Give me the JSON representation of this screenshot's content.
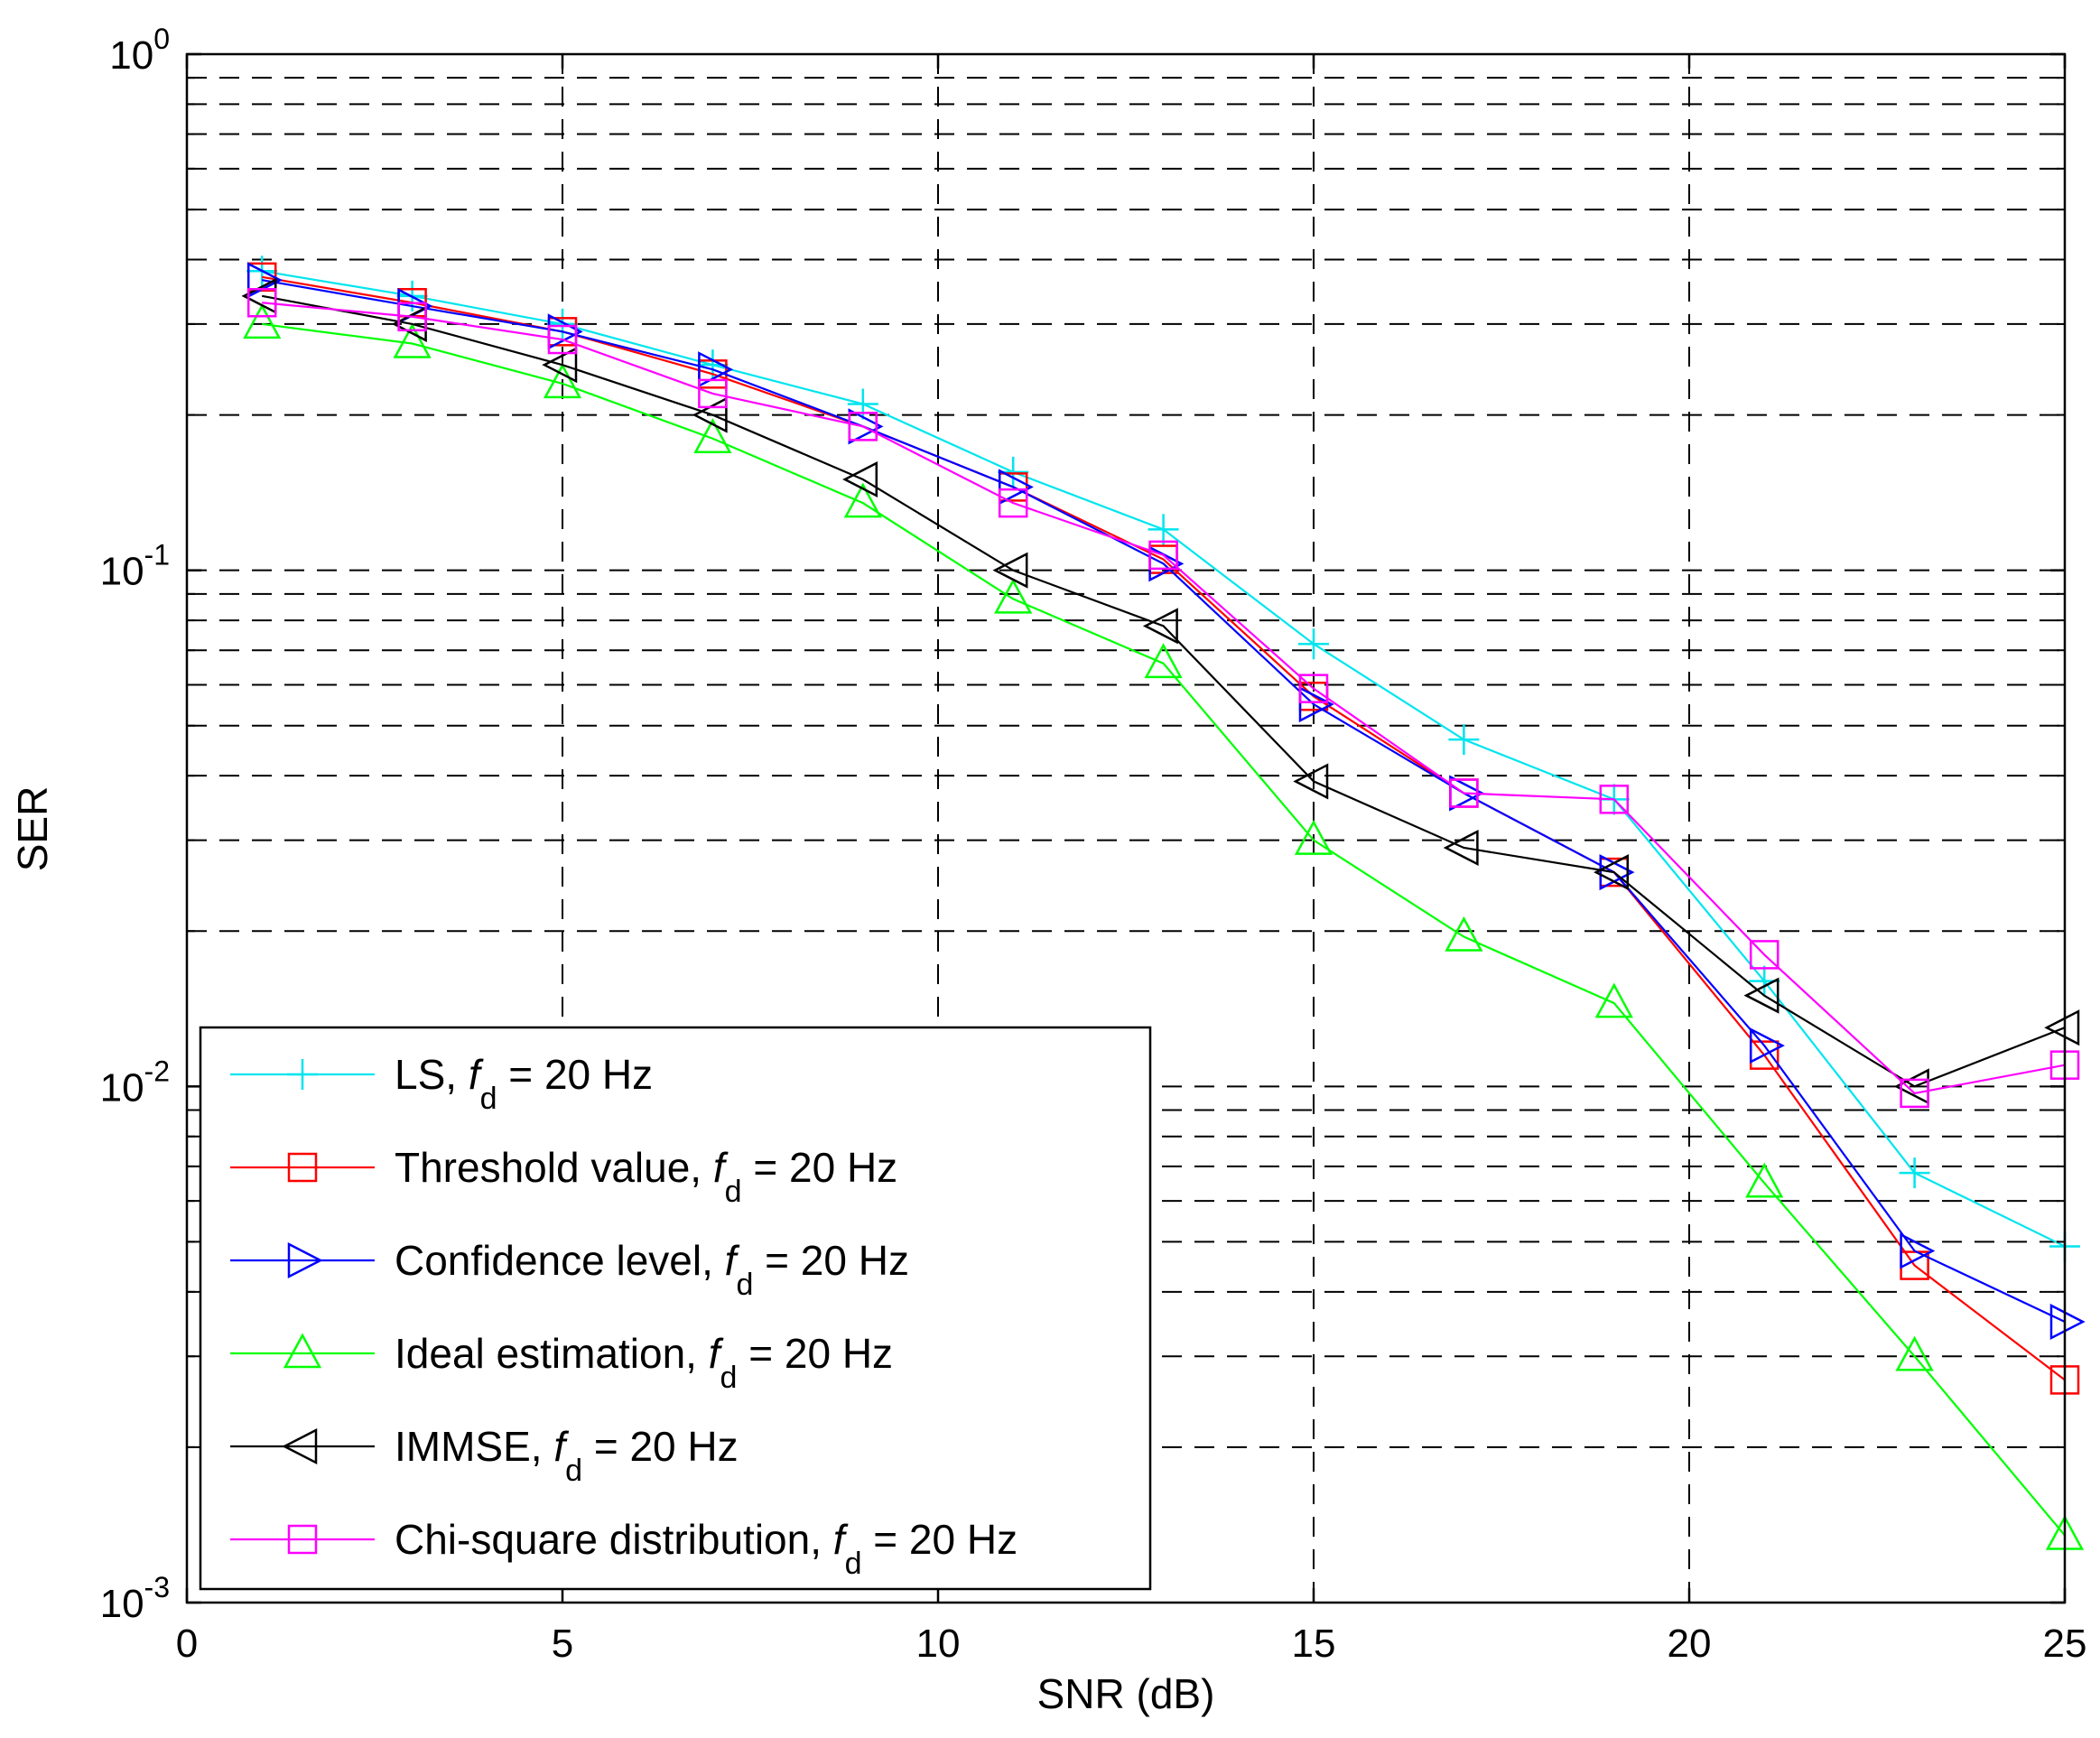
{
  "chart_data": {
    "type": "line",
    "title": "",
    "xlabel": "SNR (dB)",
    "ylabel": "SER",
    "xlim": [
      0,
      25
    ],
    "ylim": [
      0.001,
      1
    ],
    "yscale": "log",
    "grid": true,
    "legend_position": "bottom-left",
    "x_ticks": [
      "0",
      "5",
      "10",
      "15",
      "20",
      "25"
    ],
    "y_ticks": [
      {
        "base": "10",
        "exp": "0"
      },
      {
        "base": "10",
        "exp": "-1"
      },
      {
        "base": "10",
        "exp": "-2"
      },
      {
        "base": "10",
        "exp": "-3"
      }
    ],
    "x": [
      1,
      3,
      5,
      7,
      9,
      11,
      13,
      15,
      17,
      19,
      21,
      23,
      25
    ],
    "series": [
      {
        "name": "LS",
        "color": "#00e5ee",
        "marker": "plus",
        "legend_param": "f",
        "legend_sub": "d",
        "legend_suffix": " = 20 Hz",
        "values": [
          0.38,
          0.34,
          0.3,
          0.25,
          0.21,
          0.155,
          0.12,
          0.072,
          0.047,
          0.036,
          0.016,
          0.0068,
          0.0049
        ]
      },
      {
        "name": "Threshold value",
        "color": "#ff0000",
        "marker": "square",
        "legend_param": "f",
        "legend_sub": "d",
        "legend_suffix": " = 20 Hz",
        "values": [
          0.37,
          0.33,
          0.29,
          0.24,
          0.19,
          0.145,
          0.105,
          0.057,
          0.037,
          0.026,
          0.0115,
          0.0045,
          0.0027
        ]
      },
      {
        "name": "Confidence level",
        "color": "#0000ff",
        "marker": "triangle-right",
        "legend_param": "f",
        "legend_sub": "d",
        "legend_suffix": " = 20 Hz",
        "values": [
          0.365,
          0.325,
          0.29,
          0.245,
          0.19,
          0.145,
          0.103,
          0.055,
          0.037,
          0.026,
          0.012,
          0.0048,
          0.0035
        ]
      },
      {
        "name": "Ideal estimation",
        "color": "#00ff00",
        "marker": "triangle-up",
        "legend_param": "f",
        "legend_sub": "d",
        "legend_suffix": " = 20 Hz",
        "values": [
          0.3,
          0.275,
          0.23,
          0.18,
          0.135,
          0.088,
          0.066,
          0.03,
          0.0195,
          0.0145,
          0.0065,
          0.003,
          0.00135
        ]
      },
      {
        "name": "IMMSE",
        "color": "#000000",
        "marker": "triangle-left",
        "legend_param": "f",
        "legend_sub": "d",
        "legend_suffix": " = 20 Hz",
        "values": [
          0.34,
          0.3,
          0.25,
          0.2,
          0.15,
          0.1,
          0.078,
          0.039,
          0.029,
          0.026,
          0.015,
          0.01,
          0.013
        ]
      },
      {
        "name": "Chi-square distribution",
        "color": "#ff00ff",
        "marker": "square",
        "legend_param": "f",
        "legend_sub": "d",
        "legend_suffix": " = 20 Hz",
        "values": [
          0.33,
          0.31,
          0.28,
          0.22,
          0.19,
          0.135,
          0.107,
          0.059,
          0.037,
          0.036,
          0.018,
          0.0097,
          0.011
        ]
      }
    ]
  }
}
